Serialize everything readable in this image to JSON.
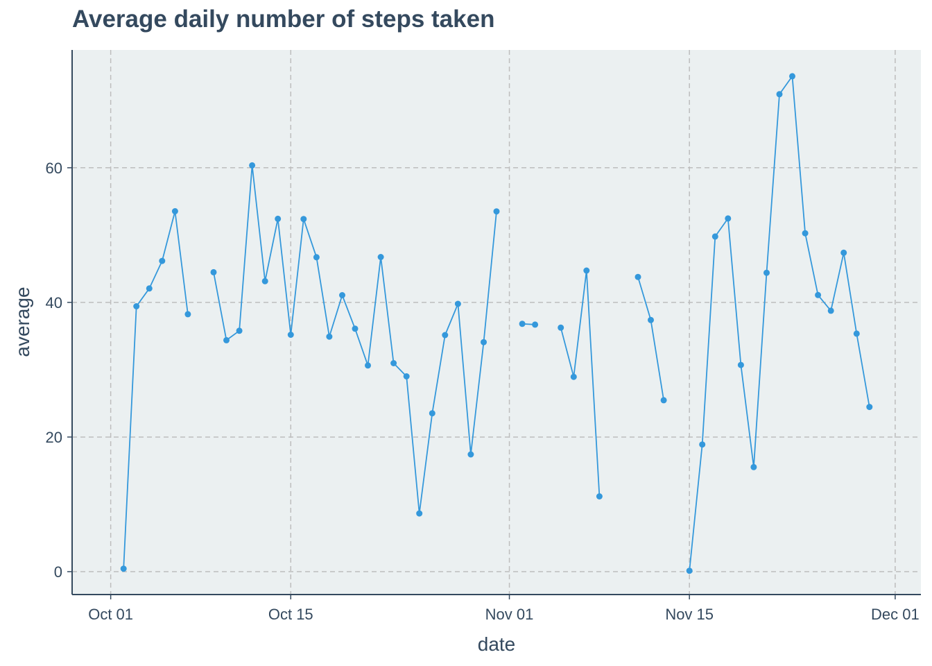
{
  "chart_data": {
    "type": "line",
    "title": "Average daily number of steps taken",
    "xlabel": "date",
    "ylabel": "average",
    "x_ticks": [
      {
        "date": "2012-10-01",
        "label": "Oct 01"
      },
      {
        "date": "2012-10-15",
        "label": "Oct 15"
      },
      {
        "date": "2012-11-01",
        "label": "Nov 01"
      },
      {
        "date": "2012-11-15",
        "label": "Nov 15"
      },
      {
        "date": "2012-12-01",
        "label": "Dec 01"
      }
    ],
    "y_ticks": [
      0,
      20,
      40,
      60
    ],
    "xlim": [
      "2012-09-28",
      "2012-12-03"
    ],
    "ylim": [
      -3.4,
      77.5
    ],
    "grid": true,
    "colors": {
      "line": "#3498db",
      "panel": "#ebf0f1",
      "grid": "#bdbdbd",
      "axis": "#34495e",
      "text": "#34495e"
    },
    "series": [
      {
        "values": [
          {
            "x": "2012-10-01",
            "y": null
          },
          {
            "x": "2012-10-02",
            "y": 0.44
          },
          {
            "x": "2012-10-03",
            "y": 39.42
          },
          {
            "x": "2012-10-04",
            "y": 42.07
          },
          {
            "x": "2012-10-05",
            "y": 46.16
          },
          {
            "x": "2012-10-06",
            "y": 53.54
          },
          {
            "x": "2012-10-07",
            "y": 38.25
          },
          {
            "x": "2012-10-08",
            "y": null
          },
          {
            "x": "2012-10-09",
            "y": 44.48
          },
          {
            "x": "2012-10-10",
            "y": 34.38
          },
          {
            "x": "2012-10-11",
            "y": 35.78
          },
          {
            "x": "2012-10-12",
            "y": 60.35
          },
          {
            "x": "2012-10-13",
            "y": 43.15
          },
          {
            "x": "2012-10-14",
            "y": 52.42
          },
          {
            "x": "2012-10-15",
            "y": 35.2
          },
          {
            "x": "2012-10-16",
            "y": 52.38
          },
          {
            "x": "2012-10-17",
            "y": 46.71
          },
          {
            "x": "2012-10-18",
            "y": 34.92
          },
          {
            "x": "2012-10-19",
            "y": 41.07
          },
          {
            "x": "2012-10-20",
            "y": 36.09
          },
          {
            "x": "2012-10-21",
            "y": 30.63
          },
          {
            "x": "2012-10-22",
            "y": 46.74
          },
          {
            "x": "2012-10-23",
            "y": 30.97
          },
          {
            "x": "2012-10-24",
            "y": 29.01
          },
          {
            "x": "2012-10-25",
            "y": 8.65
          },
          {
            "x": "2012-10-26",
            "y": 23.53
          },
          {
            "x": "2012-10-27",
            "y": 35.14
          },
          {
            "x": "2012-10-28",
            "y": 39.78
          },
          {
            "x": "2012-10-29",
            "y": 17.42
          },
          {
            "x": "2012-10-30",
            "y": 34.09
          },
          {
            "x": "2012-10-31",
            "y": 53.52
          },
          {
            "x": "2012-11-01",
            "y": null
          },
          {
            "x": "2012-11-02",
            "y": 36.81
          },
          {
            "x": "2012-11-03",
            "y": 36.7
          },
          {
            "x": "2012-11-04",
            "y": null
          },
          {
            "x": "2012-11-05",
            "y": 36.25
          },
          {
            "x": "2012-11-06",
            "y": 28.94
          },
          {
            "x": "2012-11-07",
            "y": 44.73
          },
          {
            "x": "2012-11-08",
            "y": 11.18
          },
          {
            "x": "2012-11-09",
            "y": null
          },
          {
            "x": "2012-11-10",
            "y": null
          },
          {
            "x": "2012-11-11",
            "y": 43.78
          },
          {
            "x": "2012-11-12",
            "y": 37.38
          },
          {
            "x": "2012-11-13",
            "y": 25.47
          },
          {
            "x": "2012-11-14",
            "y": null
          },
          {
            "x": "2012-11-15",
            "y": 0.14
          },
          {
            "x": "2012-11-16",
            "y": 18.89
          },
          {
            "x": "2012-11-17",
            "y": 49.79
          },
          {
            "x": "2012-11-18",
            "y": 52.47
          },
          {
            "x": "2012-11-19",
            "y": 30.7
          },
          {
            "x": "2012-11-20",
            "y": 15.53
          },
          {
            "x": "2012-11-21",
            "y": 44.4
          },
          {
            "x": "2012-11-22",
            "y": 70.93
          },
          {
            "x": "2012-11-23",
            "y": 73.59
          },
          {
            "x": "2012-11-24",
            "y": 50.27
          },
          {
            "x": "2012-11-25",
            "y": 41.09
          },
          {
            "x": "2012-11-26",
            "y": 38.76
          },
          {
            "x": "2012-11-27",
            "y": 47.38
          },
          {
            "x": "2012-11-28",
            "y": 35.36
          },
          {
            "x": "2012-11-29",
            "y": 24.47
          },
          {
            "x": "2012-11-30",
            "y": null
          }
        ]
      }
    ]
  }
}
